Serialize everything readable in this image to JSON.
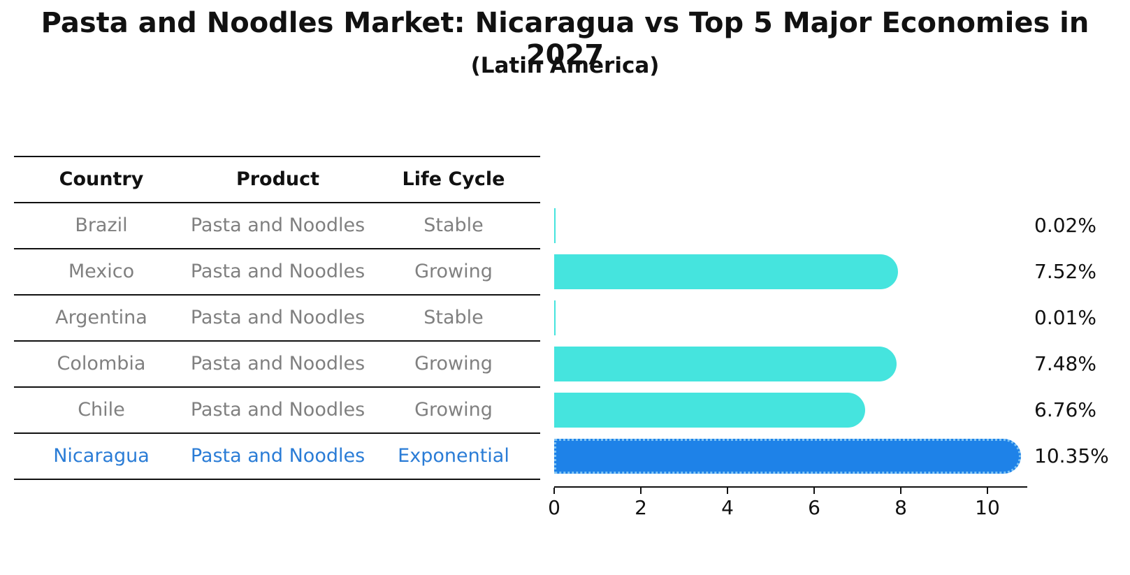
{
  "header": {
    "title": "Pasta and Noodles Market: Nicaragua vs Top 5 Major Economies in 2027",
    "subtitle": "(Latin America)"
  },
  "table": {
    "columns": [
      "Country",
      "Product",
      "Life Cycle"
    ],
    "rows": [
      {
        "country": "Brazil",
        "product": "Pasta and Noodles",
        "life_cycle": "Stable",
        "highlighted": false
      },
      {
        "country": "Mexico",
        "product": "Pasta and Noodles",
        "life_cycle": "Growing",
        "highlighted": false
      },
      {
        "country": "Argentina",
        "product": "Pasta and Noodles",
        "life_cycle": "Stable",
        "highlighted": false
      },
      {
        "country": "Colombia",
        "product": "Pasta and Noodles",
        "life_cycle": "Growing",
        "highlighted": false
      },
      {
        "country": "Chile",
        "product": "Pasta and Noodles",
        "life_cycle": "Growing",
        "highlighted": false
      },
      {
        "country": "Nicaragua",
        "product": "Pasta and Noodles",
        "life_cycle": "Exponential",
        "highlighted": true
      }
    ]
  },
  "chart_data": {
    "type": "bar",
    "orientation": "horizontal",
    "title": "Pasta and Noodles Market: Nicaragua vs Top 5 Major Economies in 2027",
    "subtitle": "(Latin America)",
    "categories": [
      "Brazil",
      "Mexico",
      "Argentina",
      "Colombia",
      "Chile",
      "Nicaragua"
    ],
    "values": [
      0.02,
      7.52,
      0.01,
      7.48,
      6.76,
      10.35
    ],
    "value_labels": [
      "0.02%",
      "7.52%",
      "0.01%",
      "7.48%",
      "6.76%",
      "10.35%"
    ],
    "xlabel": "",
    "ylabel": "",
    "xlim": [
      0,
      10.92
    ],
    "x_ticks": [
      0,
      2,
      4,
      6,
      8,
      10
    ],
    "x_tick_labels": [
      "0",
      "2",
      "4",
      "6",
      "8",
      "10"
    ],
    "grid": false,
    "legend": "none",
    "highlight_index": 5,
    "colors": {
      "bar_default": "#45E4DE",
      "bar_highlight": "#1E82E8",
      "highlight_border": "#7FC4F4",
      "highlight_text": "#2A7CD6",
      "table_text": "#808080",
      "axis_text": "#111111"
    }
  }
}
